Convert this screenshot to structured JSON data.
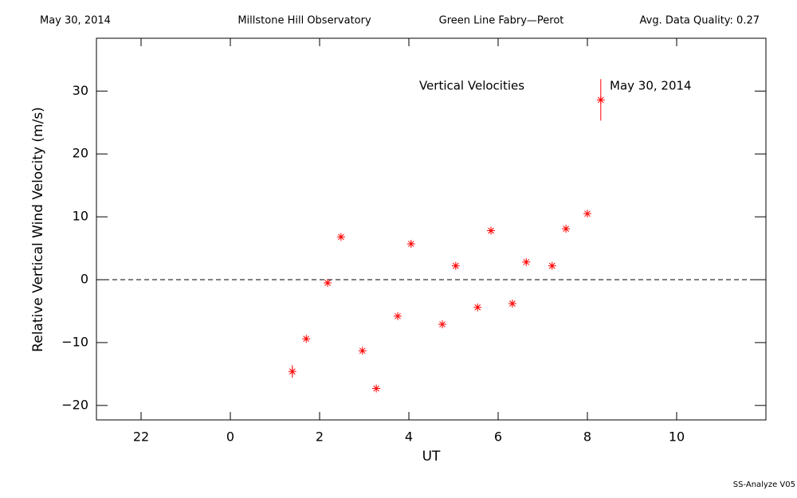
{
  "chart_data": {
    "type": "scatter",
    "header": [
      "May 30, 2014",
      "Millstone Hill Observatory",
      "Green Line Fabry—Perot",
      "Avg. Data Quality: 0.27"
    ],
    "title": "Vertical Velocities",
    "xlabel": "UT",
    "ylabel": "Relative Vertical Wind Velocity (m/s)",
    "footer": "SS-Analyze V05",
    "xlim": [
      -3,
      12
    ],
    "xticks": [
      {
        "value": -2,
        "label": "22"
      },
      0,
      2,
      4,
      6,
      8,
      10
    ],
    "ylim": [
      -22.3,
      38.4
    ],
    "yticks": [
      {
        "value": -20,
        "label": "−20"
      },
      {
        "value": -10,
        "label": "−10"
      },
      0,
      10,
      20,
      30
    ],
    "reference_line": 0,
    "series": [
      {
        "name": "May 30, 2014",
        "color": "#ff0000",
        "x": [
          1.39,
          1.7,
          2.18,
          2.48,
          2.96,
          3.27,
          3.75,
          4.05,
          4.75,
          5.05,
          5.54,
          5.84,
          6.32,
          6.63,
          7.21,
          7.52,
          8.0,
          8.3
        ],
        "values": [
          -14.6,
          -9.4,
          -0.5,
          6.8,
          -11.3,
          -17.3,
          -5.8,
          5.7,
          -7.1,
          2.2,
          -4.4,
          7.8,
          -3.8,
          2.8,
          2.2,
          8.1,
          10.5,
          28.6
        ],
        "errors": [
          1.0,
          0.3,
          0.3,
          0.3,
          0.3,
          0.3,
          0.3,
          0.3,
          0.3,
          0.3,
          0.3,
          0.3,
          0.3,
          0.3,
          0.3,
          0.3,
          0.3,
          3.3
        ]
      }
    ]
  }
}
